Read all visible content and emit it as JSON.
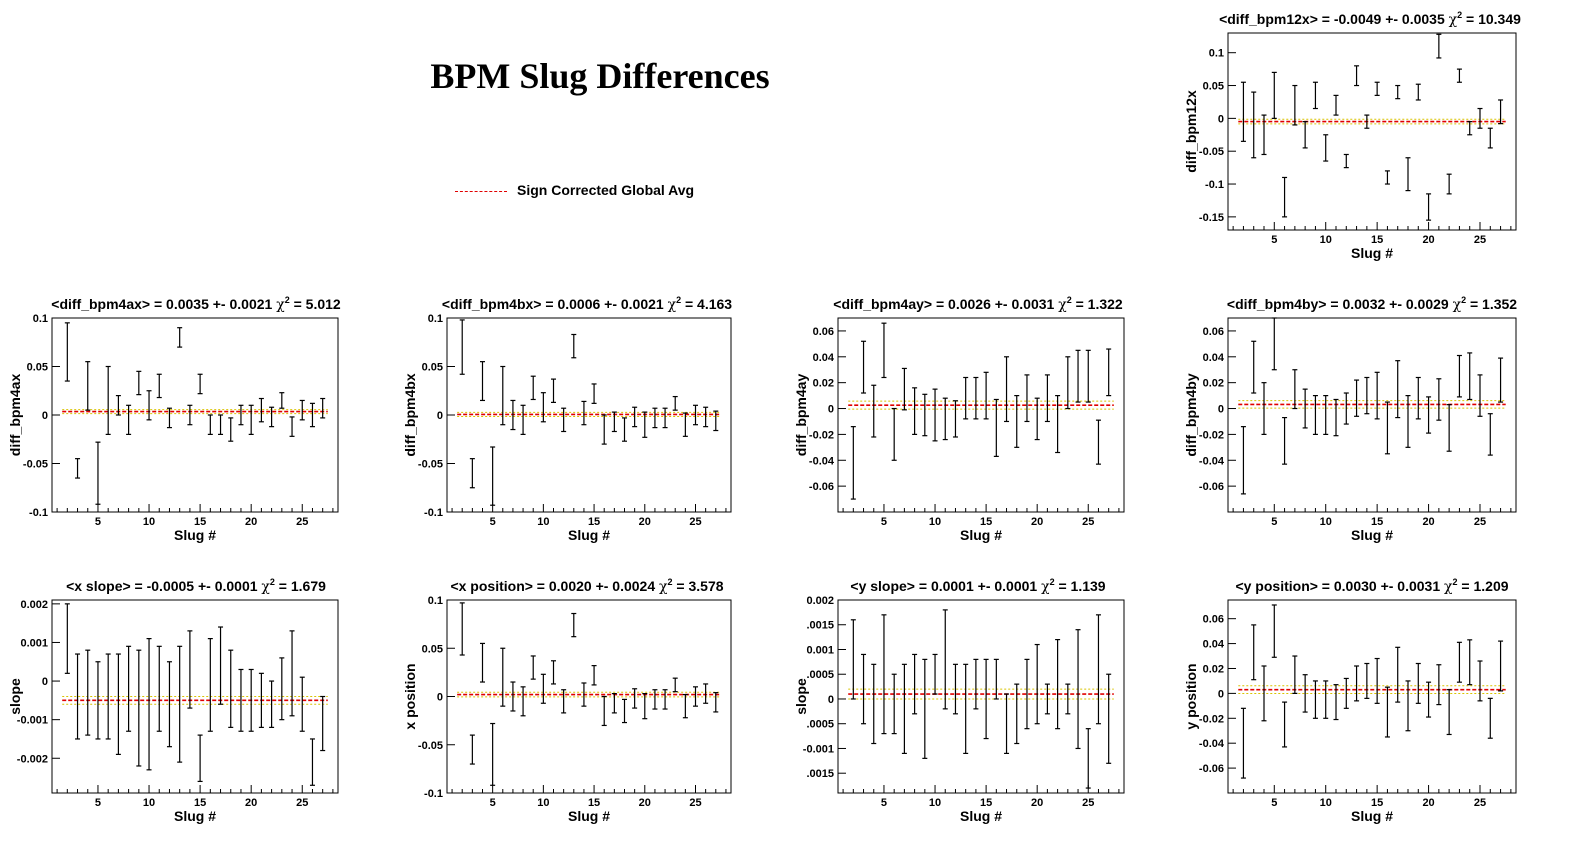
{
  "page": {
    "title": "BPM Slug Differences",
    "legend": {
      "label": "Sign Corrected Global Avg",
      "color": "#e00000"
    }
  },
  "colors": {
    "points": "#000000",
    "avg": "#e00000",
    "band": "#d9c400"
  },
  "chart_data": [
    {
      "type": "scatter",
      "title_main": "<diff_bpm12x> = -0.0049 +- 0.0035",
      "chi2": "10.349",
      "xlabel": "Slug #",
      "ylabel": "diff_bpm12x",
      "xlim": [
        0.5,
        28.5
      ],
      "ylim": [
        -0.17,
        0.13
      ],
      "xticks": [
        5,
        10,
        15,
        20,
        25
      ],
      "yticks": [
        -0.15,
        -0.1,
        -0.05,
        0,
        0.05,
        0.1
      ],
      "yticklabels": [
        "-0.15",
        "-0.1",
        "-0.05",
        "0",
        "0.05",
        "0.1"
      ],
      "avg": -0.0049,
      "band": [
        -0.0084,
        -0.0014
      ],
      "x": [
        2,
        3,
        4,
        5,
        6,
        7,
        8,
        9,
        10,
        11,
        12,
        13,
        14,
        15,
        16,
        17,
        18,
        19,
        20,
        21,
        22,
        23,
        24,
        25,
        26,
        27
      ],
      "y": [
        0.01,
        -0.01,
        -0.025,
        0.035,
        -0.12,
        0.02,
        -0.025,
        0.035,
        -0.045,
        0.02,
        -0.065,
        0.065,
        -0.005,
        0.045,
        -0.09,
        0.04,
        -0.085,
        0.04,
        -0.135,
        0.11,
        -0.1,
        0.065,
        -0.015,
        0.0,
        -0.03,
        0.01
      ],
      "err": [
        0.045,
        0.05,
        0.03,
        0.035,
        0.03,
        0.03,
        0.02,
        0.02,
        0.02,
        0.015,
        0.01,
        0.015,
        0.01,
        0.01,
        0.01,
        0.01,
        0.025,
        0.012,
        0.02,
        0.018,
        0.015,
        0.01,
        0.01,
        0.015,
        0.015,
        0.018
      ]
    },
    {
      "type": "scatter",
      "title_main": "<diff_bpm4ax> = 0.0035 +- 0.0021",
      "chi2": "5.012",
      "xlabel": "Slug #",
      "ylabel": "diff_bpm4ax",
      "xlim": [
        0.5,
        28.5
      ],
      "ylim": [
        -0.1,
        0.1
      ],
      "xticks": [
        5,
        10,
        15,
        20,
        25
      ],
      "yticks": [
        -0.1,
        -0.05,
        0,
        0.05,
        0.1
      ],
      "yticklabels": [
        "-0.1",
        "-0.05",
        "0",
        "0.05",
        "0.1"
      ],
      "avg": 0.0035,
      "band": [
        0.0014,
        0.0056
      ],
      "x": [
        2,
        3,
        4,
        5,
        6,
        7,
        8,
        9,
        10,
        11,
        12,
        13,
        14,
        15,
        16,
        17,
        18,
        19,
        20,
        21,
        22,
        23,
        24,
        25,
        26,
        27
      ],
      "y": [
        0.065,
        -0.055,
        0.03,
        -0.06,
        0.015,
        0.01,
        -0.005,
        0.033,
        0.01,
        0.03,
        -0.003,
        0.08,
        0.0,
        0.032,
        -0.01,
        -0.01,
        -0.015,
        0.0,
        -0.005,
        0.005,
        -0.002,
        0.015,
        -0.012,
        0.005,
        0.0,
        0.007
      ],
      "err": [
        0.03,
        0.01,
        0.025,
        0.032,
        0.035,
        0.01,
        0.015,
        0.012,
        0.015,
        0.012,
        0.01,
        0.01,
        0.01,
        0.01,
        0.01,
        0.01,
        0.012,
        0.01,
        0.015,
        0.012,
        0.01,
        0.008,
        0.01,
        0.01,
        0.012,
        0.01
      ]
    },
    {
      "type": "scatter",
      "title_main": "<diff_bpm4bx> = 0.0006 +- 0.0021",
      "chi2": "4.163",
      "xlabel": "Slug #",
      "ylabel": "diff_bpm4bx",
      "xlim": [
        0.5,
        28.5
      ],
      "ylim": [
        -0.1,
        0.1
      ],
      "xticks": [
        5,
        10,
        15,
        20,
        25
      ],
      "yticks": [
        -0.1,
        -0.05,
        0,
        0.05,
        0.1
      ],
      "yticklabels": [
        "-0.1",
        "-0.05",
        "0",
        "0.05",
        "0.1"
      ],
      "avg": 0.0006,
      "band": [
        -0.0015,
        0.0027
      ],
      "x": [
        2,
        3,
        4,
        5,
        6,
        7,
        8,
        9,
        10,
        11,
        12,
        13,
        14,
        15,
        16,
        17,
        18,
        19,
        20,
        21,
        22,
        23,
        24,
        25,
        26,
        27
      ],
      "y": [
        0.07,
        -0.06,
        0.035,
        -0.063,
        0.02,
        0.0,
        -0.005,
        0.028,
        0.008,
        0.025,
        -0.005,
        0.071,
        0.002,
        0.022,
        -0.015,
        -0.007,
        -0.015,
        -0.002,
        -0.01,
        -0.003,
        -0.003,
        0.012,
        -0.01,
        0.0,
        -0.002,
        -0.006
      ],
      "err": [
        0.028,
        0.015,
        0.02,
        0.03,
        0.03,
        0.015,
        0.015,
        0.012,
        0.015,
        0.012,
        0.012,
        0.012,
        0.012,
        0.01,
        0.015,
        0.01,
        0.012,
        0.01,
        0.013,
        0.01,
        0.01,
        0.007,
        0.012,
        0.01,
        0.01,
        0.01
      ]
    },
    {
      "type": "scatter",
      "title_main": "<diff_bpm4ay> = 0.0026 +- 0.0031",
      "chi2": "1.322",
      "xlabel": "Slug #",
      "ylabel": "diff_bpm4ay",
      "xlim": [
        0.5,
        28.5
      ],
      "ylim": [
        -0.08,
        0.07
      ],
      "xticks": [
        5,
        10,
        15,
        20,
        25
      ],
      "yticks": [
        -0.06,
        -0.04,
        -0.02,
        0,
        0.02,
        0.04,
        0.06
      ],
      "yticklabels": [
        "-0.06",
        "-0.04",
        "-0.02",
        "0",
        "0.02",
        "0.04",
        "0.06"
      ],
      "avg": 0.0026,
      "band": [
        -0.0005,
        0.0057
      ],
      "x": [
        2,
        3,
        4,
        5,
        6,
        7,
        8,
        9,
        10,
        11,
        12,
        13,
        14,
        15,
        16,
        17,
        18,
        19,
        20,
        21,
        22,
        23,
        24,
        25,
        26,
        27
      ],
      "y": [
        -0.042,
        0.032,
        -0.002,
        0.045,
        -0.02,
        0.015,
        -0.002,
        -0.005,
        -0.005,
        -0.008,
        -0.008,
        0.008,
        0.008,
        0.01,
        -0.015,
        0.015,
        -0.01,
        0.008,
        -0.008,
        0.008,
        -0.012,
        0.02,
        0.025,
        0.025,
        -0.026,
        0.028
      ],
      "err": [
        0.028,
        0.02,
        0.02,
        0.021,
        0.02,
        0.016,
        0.018,
        0.016,
        0.02,
        0.016,
        0.014,
        0.016,
        0.016,
        0.018,
        0.022,
        0.025,
        0.02,
        0.018,
        0.016,
        0.018,
        0.022,
        0.02,
        0.02,
        0.02,
        0.017,
        0.018
      ]
    },
    {
      "type": "scatter",
      "title_main": "<diff_bpm4by> = 0.0032 +- 0.0029",
      "chi2": "1.352",
      "xlabel": "Slug #",
      "ylabel": "diff_bpm4by",
      "xlim": [
        0.5,
        28.5
      ],
      "ylim": [
        -0.08,
        0.07
      ],
      "xticks": [
        5,
        10,
        15,
        20,
        25
      ],
      "yticks": [
        -0.06,
        -0.04,
        -0.02,
        0,
        0.02,
        0.04,
        0.06
      ],
      "yticklabels": [
        "-0.06",
        "-0.04",
        "-0.02",
        "0",
        "0.02",
        "0.04",
        "0.06"
      ],
      "avg": 0.0032,
      "band": [
        0.0003,
        0.0061
      ],
      "x": [
        2,
        3,
        4,
        5,
        6,
        7,
        8,
        9,
        10,
        11,
        12,
        13,
        14,
        15,
        16,
        17,
        18,
        19,
        20,
        21,
        22,
        23,
        24,
        25,
        26,
        27
      ],
      "y": [
        -0.04,
        0.032,
        0.0,
        0.05,
        -0.025,
        0.015,
        0.0,
        -0.005,
        -0.005,
        -0.007,
        0.0,
        0.008,
        0.01,
        0.01,
        -0.015,
        0.015,
        -0.01,
        0.008,
        -0.005,
        0.007,
        -0.015,
        0.025,
        0.025,
        0.01,
        -0.02,
        0.022
      ],
      "err": [
        0.026,
        0.02,
        0.02,
        0.02,
        0.018,
        0.015,
        0.015,
        0.015,
        0.015,
        0.014,
        0.012,
        0.014,
        0.014,
        0.018,
        0.02,
        0.022,
        0.02,
        0.016,
        0.014,
        0.016,
        0.018,
        0.016,
        0.018,
        0.016,
        0.016,
        0.017
      ]
    },
    {
      "type": "scatter",
      "title_main": "<x slope> = -0.0005 +- 0.0001",
      "chi2": "1.679",
      "xlabel": "Slug #",
      "ylabel": "slope",
      "xlim": [
        0.5,
        28.5
      ],
      "ylim": [
        -0.0029,
        0.0021
      ],
      "xticks": [
        5,
        10,
        15,
        20,
        25
      ],
      "yticks": [
        -0.002,
        -0.001,
        0,
        0.001,
        0.002
      ],
      "yticklabels": [
        "-0.002",
        "-0.001",
        "0",
        "0.001",
        "0.002"
      ],
      "avg": -0.0005,
      "band": [
        -0.0006,
        -0.0004
      ],
      "x": [
        2,
        3,
        4,
        5,
        6,
        7,
        8,
        9,
        10,
        11,
        12,
        13,
        14,
        15,
        16,
        17,
        18,
        19,
        20,
        21,
        22,
        23,
        24,
        25,
        26,
        27
      ],
      "y": [
        0.0011,
        -0.0004,
        -0.0003,
        -0.0005,
        -0.0004,
        -0.0006,
        -0.0002,
        -0.0007,
        -0.0006,
        -0.0002,
        -0.0006,
        -0.0006,
        0.0003,
        -0.002,
        -0.0001,
        0.0004,
        -0.0002,
        -0.0005,
        -0.0005,
        -0.0005,
        -0.0006,
        -0.0002,
        0.0002,
        -0.0006,
        -0.0021,
        -0.0011
      ],
      "err": [
        0.0009,
        0.0011,
        0.0011,
        0.001,
        0.0011,
        0.0013,
        0.0011,
        0.0015,
        0.0017,
        0.0011,
        0.0011,
        0.0015,
        0.001,
        0.0006,
        0.0012,
        0.001,
        0.001,
        0.0008,
        0.0008,
        0.0007,
        0.0006,
        0.0008,
        0.0011,
        0.0007,
        0.0006,
        0.0007
      ]
    },
    {
      "type": "scatter",
      "title_main": "<x position> = 0.0020 +- 0.0024",
      "chi2": "3.578",
      "xlabel": "Slug #",
      "ylabel": "x position",
      "xlim": [
        0.5,
        28.5
      ],
      "ylim": [
        -0.1,
        0.1
      ],
      "xticks": [
        5,
        10,
        15,
        20,
        25
      ],
      "yticks": [
        -0.1,
        -0.05,
        0,
        0.05,
        0.1
      ],
      "yticklabels": [
        "-0.1",
        "-0.05",
        "0",
        "0.05",
        "0.1"
      ],
      "avg": 0.002,
      "band": [
        -0.0004,
        0.0044
      ],
      "x": [
        2,
        3,
        4,
        5,
        6,
        7,
        8,
        9,
        10,
        11,
        12,
        13,
        14,
        15,
        16,
        17,
        18,
        19,
        20,
        21,
        22,
        23,
        24,
        25,
        26,
        27
      ],
      "y": [
        0.07,
        -0.055,
        0.035,
        -0.06,
        0.02,
        0.0,
        -0.005,
        0.03,
        0.008,
        0.025,
        -0.005,
        0.074,
        0.002,
        0.022,
        -0.015,
        -0.007,
        -0.015,
        -0.002,
        -0.01,
        -0.003,
        -0.003,
        0.012,
        -0.01,
        0.0,
        0.003,
        -0.006
      ],
      "err": [
        0.027,
        0.015,
        0.02,
        0.032,
        0.03,
        0.015,
        0.015,
        0.012,
        0.015,
        0.012,
        0.012,
        0.012,
        0.012,
        0.01,
        0.015,
        0.01,
        0.012,
        0.01,
        0.013,
        0.01,
        0.01,
        0.007,
        0.012,
        0.01,
        0.01,
        0.01
      ]
    },
    {
      "type": "scatter",
      "title_main": "<y slope> = 0.0001 +- 0.0001",
      "chi2": "1.139",
      "xlabel": "Slug #",
      "ylabel": "slope",
      "xlim": [
        0.5,
        28.5
      ],
      "ylim": [
        -0.0019,
        0.002
      ],
      "xticks": [
        5,
        10,
        15,
        20,
        25
      ],
      "yticks": [
        -0.0015,
        -0.001,
        -0.0005,
        0,
        0.0005,
        0.001,
        0.0015,
        0.002
      ],
      "yticklabels": [
        ".0015",
        "-0.001",
        ".0005",
        "0",
        ".0005",
        "0.001",
        ".0015",
        "0.002"
      ],
      "avg": 0.0001,
      "band": [
        0.0,
        0.0002
      ],
      "x": [
        2,
        3,
        4,
        5,
        6,
        7,
        8,
        9,
        10,
        11,
        12,
        13,
        14,
        15,
        16,
        17,
        18,
        19,
        20,
        21,
        22,
        23,
        24,
        25,
        26,
        27
      ],
      "y": [
        0.0008,
        0.0002,
        -0.0001,
        0.0005,
        -0.0001,
        -0.0002,
        0.0003,
        -0.0002,
        0.0005,
        0.0008,
        0.0002,
        -0.0002,
        0.0003,
        0.0,
        0.0004,
        -0.0005,
        -0.0003,
        0.0001,
        0.0003,
        0.0,
        0.0003,
        0.0,
        0.0002,
        -0.0012,
        0.0006,
        -0.0004
      ],
      "err": [
        0.0008,
        0.0007,
        0.0008,
        0.0012,
        0.0006,
        0.0009,
        0.0006,
        0.001,
        0.0004,
        0.001,
        0.0005,
        0.0009,
        0.0005,
        0.0008,
        0.0004,
        0.0006,
        0.0006,
        0.0007,
        0.0008,
        0.0003,
        0.0009,
        0.0003,
        0.0012,
        0.0006,
        0.0011,
        0.0009
      ]
    },
    {
      "type": "scatter",
      "title_main": "<y position> = 0.0030 +- 0.0031",
      "chi2": "1.209",
      "xlabel": "Slug #",
      "ylabel": "y position",
      "xlim": [
        0.5,
        28.5
      ],
      "ylim": [
        -0.08,
        0.075
      ],
      "xticks": [
        5,
        10,
        15,
        20,
        25
      ],
      "yticks": [
        -0.06,
        -0.04,
        -0.02,
        0,
        0.02,
        0.04,
        0.06
      ],
      "yticklabels": [
        "-0.06",
        "-0.04",
        "-0.02",
        "0",
        "0.02",
        "0.04",
        "0.06"
      ],
      "avg": 0.003,
      "band": [
        -0.0001,
        0.0061
      ],
      "x": [
        2,
        3,
        4,
        5,
        6,
        7,
        8,
        9,
        10,
        11,
        12,
        13,
        14,
        15,
        16,
        17,
        18,
        19,
        20,
        21,
        22,
        23,
        24,
        25,
        26,
        27
      ],
      "y": [
        -0.04,
        0.033,
        0.0,
        0.05,
        -0.025,
        0.015,
        0.0,
        -0.005,
        -0.005,
        -0.007,
        0.0,
        0.008,
        0.01,
        0.01,
        -0.015,
        0.015,
        -0.01,
        0.008,
        -0.005,
        0.007,
        -0.015,
        0.025,
        0.025,
        0.01,
        -0.02,
        0.022
      ],
      "err": [
        0.028,
        0.022,
        0.022,
        0.021,
        0.018,
        0.015,
        0.015,
        0.015,
        0.015,
        0.014,
        0.012,
        0.014,
        0.014,
        0.018,
        0.02,
        0.022,
        0.02,
        0.016,
        0.014,
        0.016,
        0.018,
        0.016,
        0.018,
        0.016,
        0.016,
        0.02
      ]
    }
  ]
}
